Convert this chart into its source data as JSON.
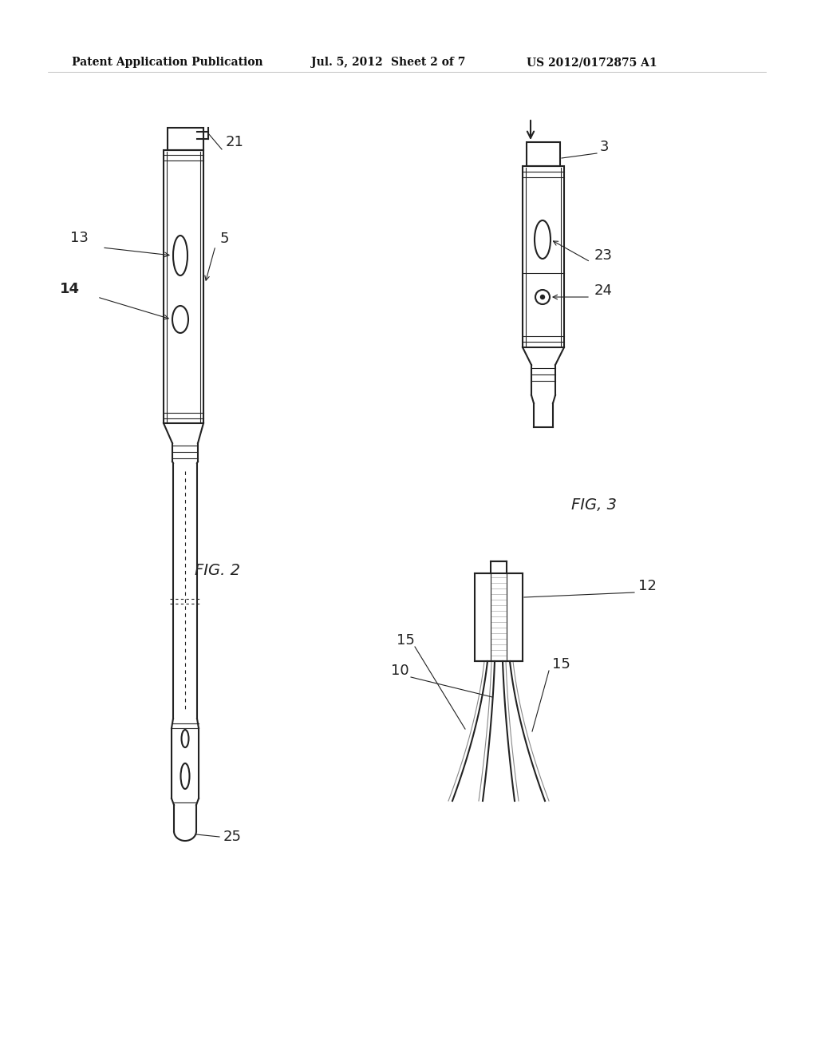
{
  "bg_color": "#ffffff",
  "header_text": "Patent Application Publication",
  "header_date": "Jul. 5, 2012",
  "header_sheet": "Sheet 2 of 7",
  "header_patent": "US 2012/0172875 A1",
  "fig2_label": "FIG. 2",
  "fig3_label": "FIG, 3",
  "color": "#222222",
  "lw_main": 1.5,
  "lw_thin": 0.8
}
